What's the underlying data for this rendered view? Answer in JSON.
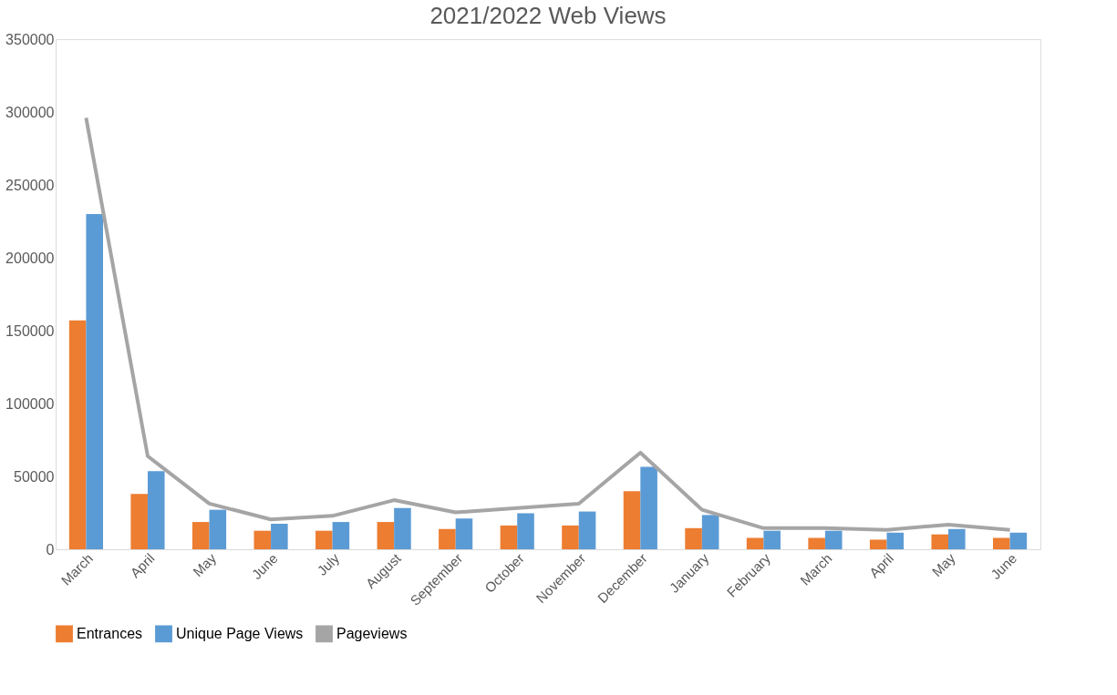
{
  "chart_data": {
    "type": "bar",
    "title": "2021/2022 Web Views",
    "categories": [
      "March",
      "April",
      "May",
      "June",
      "July",
      "August",
      "September",
      "October",
      "November",
      "December",
      "January",
      "February",
      "March",
      "April",
      "May",
      "June"
    ],
    "series": [
      {
        "name": "Entrances",
        "color": "#ed7d31",
        "values": [
          157000,
          38000,
          18700,
          12700,
          12700,
          18700,
          13900,
          16300,
          16300,
          39800,
          14500,
          7800,
          7800,
          6600,
          10200,
          7800
        ]
      },
      {
        "name": "Unique Page Views",
        "color": "#5b9bd5",
        "values": [
          230000,
          53600,
          27100,
          17500,
          18700,
          28300,
          21100,
          24700,
          25900,
          56600,
          23500,
          12700,
          12700,
          11400,
          13900,
          11400
        ]
      },
      {
        "name": "Pageviews",
        "color": "#a5a5a5",
        "type": "line",
        "values": [
          296000,
          63900,
          31300,
          20500,
          22900,
          33700,
          25300,
          28300,
          31300,
          66300,
          27100,
          14500,
          14500,
          13300,
          16900,
          13300
        ]
      }
    ],
    "ylim": [
      0,
      350000
    ],
    "yticks": [
      0,
      50000,
      100000,
      150000,
      200000,
      250000,
      300000,
      350000
    ],
    "grid": false,
    "legend": "bottom",
    "marker": "none",
    "line_style": "solid"
  }
}
